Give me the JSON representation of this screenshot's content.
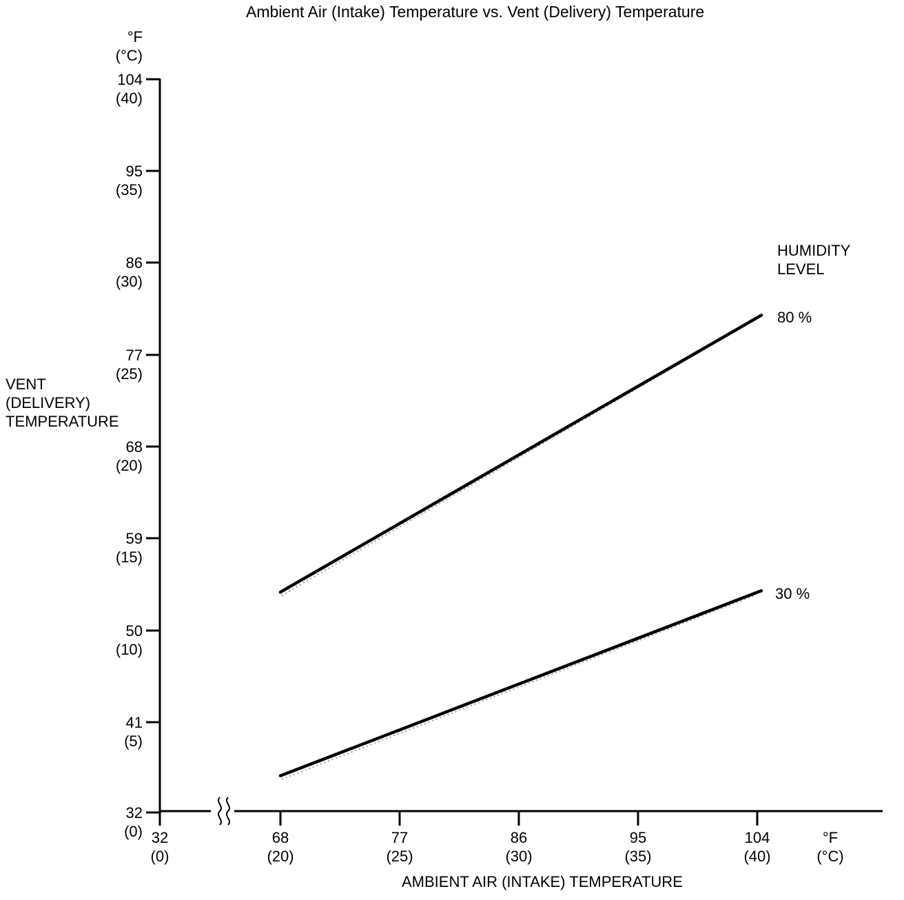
{
  "title": "Ambient Air (Intake) Temperature vs. Vent (Delivery) Temperature",
  "y_axis": {
    "unit_f": "°F",
    "unit_c": "(°C)",
    "title_l1": "VENT",
    "title_l2": "(DELIVERY)",
    "title_l3": "TEMPERATURE",
    "ticks": [
      {
        "f": "104",
        "c": "(40)"
      },
      {
        "f": "95",
        "c": "(35)"
      },
      {
        "f": "86",
        "c": "(30)"
      },
      {
        "f": "77",
        "c": "(25)"
      },
      {
        "f": "68",
        "c": "(20)"
      },
      {
        "f": "59",
        "c": "(15)"
      },
      {
        "f": "50",
        "c": "(10)"
      },
      {
        "f": "41",
        "c": "(5)"
      },
      {
        "f": "32",
        "c": "(0)"
      }
    ]
  },
  "x_axis": {
    "unit_f": "°F",
    "unit_c": "(°C)",
    "title": "AMBIENT AIR (INTAKE) TEMPERATURE",
    "ticks": [
      {
        "f": "32",
        "c": "(0)"
      },
      {
        "f": "68",
        "c": "(20)"
      },
      {
        "f": "77",
        "c": "(25)"
      },
      {
        "f": "86",
        "c": "(30)"
      },
      {
        "f": "95",
        "c": "(35)"
      },
      {
        "f": "104",
        "c": "(40)"
      }
    ]
  },
  "legend": {
    "title_l1": "HUMIDITY",
    "title_l2": "LEVEL",
    "series_80": "80 %",
    "series_30": "30 %"
  },
  "colors": {
    "line": "#000000",
    "texture": "#9b9b9b",
    "background": "#ffffff"
  },
  "chart_data": {
    "type": "line",
    "title": "Ambient Air (Intake) Temperature vs. Vent (Delivery) Temperature",
    "xlabel": "AMBIENT AIR (INTAKE) TEMPERATURE",
    "ylabel": "VENT (DELIVERY) TEMPERATURE",
    "x_units": "°F (°C)",
    "y_units": "°F (°C)",
    "x_ticks_f": [
      32,
      68,
      77,
      86,
      95,
      104
    ],
    "x_ticks_c": [
      0,
      20,
      25,
      30,
      35,
      40
    ],
    "y_ticks_f": [
      32,
      41,
      50,
      59,
      68,
      77,
      86,
      95,
      104
    ],
    "y_ticks_c": [
      0,
      5,
      10,
      15,
      20,
      25,
      30,
      35,
      40
    ],
    "xlim_c": [
      0,
      40
    ],
    "ylim_c": [
      0,
      40
    ],
    "x_axis_break_between_c": [
      0,
      20
    ],
    "grid": false,
    "legend_title": "HUMIDITY LEVEL",
    "legend_position": "right",
    "series": [
      {
        "name": "80 %",
        "points_c": [
          [
            20,
            12
          ],
          [
            40,
            27
          ]
        ],
        "points_f": [
          [
            68,
            54
          ],
          [
            104,
            81
          ]
        ]
      },
      {
        "name": "30 %",
        "points_c": [
          [
            20,
            2
          ],
          [
            40,
            12
          ]
        ],
        "points_f": [
          [
            68,
            36
          ],
          [
            104,
            54
          ]
        ]
      }
    ]
  }
}
